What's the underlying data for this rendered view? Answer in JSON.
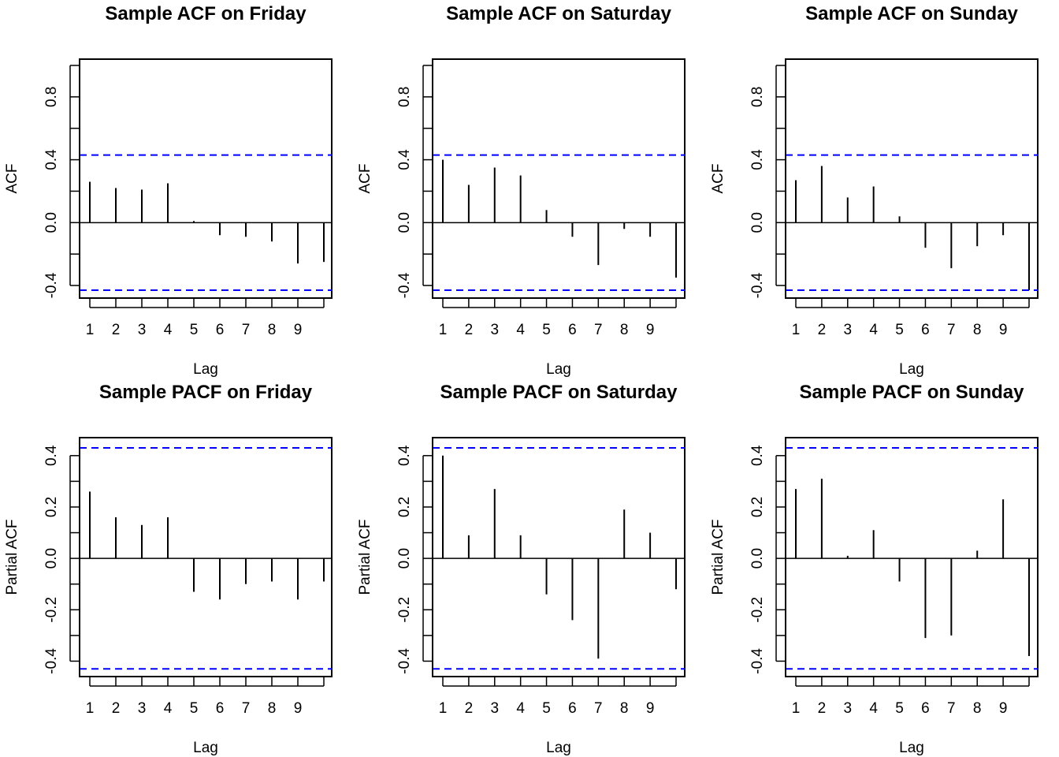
{
  "chart_data": [
    {
      "type": "bar",
      "title": "Sample ACF on Friday",
      "xlabel": "Lag",
      "ylabel": "ACF",
      "ylim": [
        -0.48,
        1.04
      ],
      "yticks": [
        -0.4,
        0.0,
        0.4,
        0.8
      ],
      "ytick_labels": [
        "-0.4",
        "0.0",
        "0.4",
        "0.8"
      ],
      "xticks": [
        1,
        2,
        3,
        4,
        5,
        6,
        7,
        8,
        9
      ],
      "ci": 0.43,
      "series": [
        {
          "x": [
            1,
            2,
            3,
            4,
            5,
            6,
            7,
            8,
            9,
            10
          ],
          "values": [
            0.26,
            0.22,
            0.21,
            0.25,
            0.01,
            -0.08,
            -0.09,
            -0.12,
            -0.26,
            -0.25
          ]
        }
      ]
    },
    {
      "type": "bar",
      "title": "Sample ACF on Saturday",
      "xlabel": "Lag",
      "ylabel": "ACF",
      "ylim": [
        -0.48,
        1.04
      ],
      "yticks": [
        -0.4,
        0.0,
        0.4,
        0.8
      ],
      "ytick_labels": [
        "-0.4",
        "0.0",
        "0.4",
        "0.8"
      ],
      "xticks": [
        1,
        2,
        3,
        4,
        5,
        6,
        7,
        8,
        9
      ],
      "ci": 0.43,
      "series": [
        {
          "x": [
            1,
            2,
            3,
            4,
            5,
            6,
            7,
            8,
            9,
            10
          ],
          "values": [
            0.4,
            0.24,
            0.35,
            0.3,
            0.08,
            -0.09,
            -0.27,
            -0.04,
            -0.09,
            -0.35
          ]
        }
      ]
    },
    {
      "type": "bar",
      "title": "Sample ACF on Sunday",
      "xlabel": "Lag",
      "ylabel": "ACF",
      "ylim": [
        -0.48,
        1.04
      ],
      "yticks": [
        -0.4,
        0.0,
        0.4,
        0.8
      ],
      "ytick_labels": [
        "-0.4",
        "0.0",
        "0.4",
        "0.8"
      ],
      "xticks": [
        1,
        2,
        3,
        4,
        5,
        6,
        7,
        8,
        9
      ],
      "ci": 0.43,
      "series": [
        {
          "x": [
            1,
            2,
            3,
            4,
            5,
            6,
            7,
            8,
            9,
            10
          ],
          "values": [
            0.27,
            0.36,
            0.16,
            0.23,
            0.04,
            -0.16,
            -0.29,
            -0.15,
            -0.08,
            -0.43
          ]
        }
      ]
    },
    {
      "type": "bar",
      "title": "Sample PACF on Friday",
      "xlabel": "Lag",
      "ylabel": "Partial ACF",
      "ylim": [
        -0.46,
        0.47
      ],
      "yticks": [
        -0.4,
        -0.2,
        0.0,
        0.2,
        0.4
      ],
      "ytick_labels": [
        "-0.4",
        "-0.2",
        "0.0",
        "0.2",
        "0.4"
      ],
      "xticks": [
        1,
        2,
        3,
        4,
        5,
        6,
        7,
        8,
        9
      ],
      "ci": 0.43,
      "series": [
        {
          "x": [
            1,
            2,
            3,
            4,
            5,
            6,
            7,
            8,
            9,
            10
          ],
          "values": [
            0.26,
            0.16,
            0.13,
            0.16,
            -0.13,
            -0.16,
            -0.1,
            -0.09,
            -0.16,
            -0.09
          ]
        }
      ]
    },
    {
      "type": "bar",
      "title": "Sample PACF on Saturday",
      "xlabel": "Lag",
      "ylabel": "Partial ACF",
      "ylim": [
        -0.46,
        0.47
      ],
      "yticks": [
        -0.4,
        -0.2,
        0.0,
        0.2,
        0.4
      ],
      "ytick_labels": [
        "-0.4",
        "-0.2",
        "0.0",
        "0.2",
        "0.4"
      ],
      "xticks": [
        1,
        2,
        3,
        4,
        5,
        6,
        7,
        8,
        9
      ],
      "ci": 0.43,
      "series": [
        {
          "x": [
            1,
            2,
            3,
            4,
            5,
            6,
            7,
            8,
            9,
            10
          ],
          "values": [
            0.4,
            0.09,
            0.27,
            0.09,
            -0.14,
            -0.24,
            -0.39,
            0.19,
            0.1,
            -0.12
          ]
        }
      ]
    },
    {
      "type": "bar",
      "title": "Sample PACF on Sunday",
      "xlabel": "Lag",
      "ylabel": "Partial ACF",
      "ylim": [
        -0.46,
        0.47
      ],
      "yticks": [
        -0.4,
        -0.2,
        0.0,
        0.2,
        0.4
      ],
      "ytick_labels": [
        "-0.4",
        "-0.2",
        "0.0",
        "0.2",
        "0.4"
      ],
      "xticks": [
        1,
        2,
        3,
        4,
        5,
        6,
        7,
        8,
        9
      ],
      "ci": 0.43,
      "series": [
        {
          "x": [
            1,
            2,
            3,
            4,
            5,
            6,
            7,
            8,
            9,
            10
          ],
          "values": [
            0.27,
            0.31,
            0.01,
            0.11,
            -0.09,
            -0.31,
            -0.3,
            0.03,
            0.23,
            -0.38
          ]
        }
      ]
    }
  ],
  "colors": {
    "spike": "#000000",
    "ci": "#0000ff",
    "frame": "#000000"
  }
}
